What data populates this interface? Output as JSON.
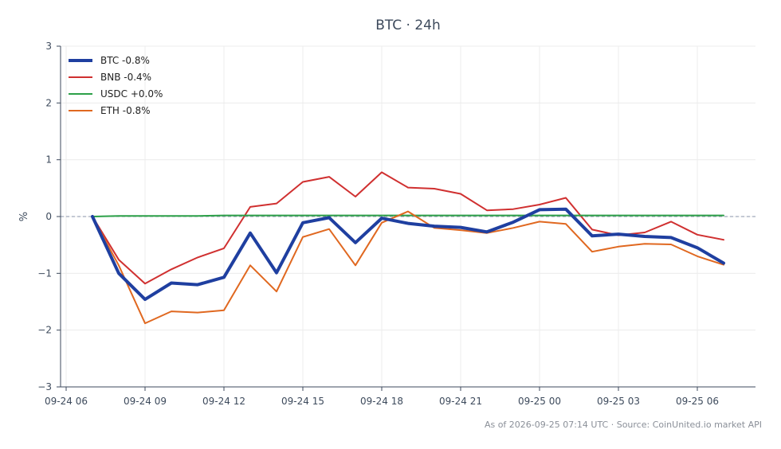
{
  "chart_data": {
    "type": "line",
    "title": "BTC · 24h",
    "ylabel": "%",
    "xlabel": "",
    "ylim": [
      -3,
      3
    ],
    "yticks": [
      -3,
      -2,
      -1,
      0,
      1,
      2,
      3
    ],
    "ytick_labels": [
      "−3",
      "−2",
      "−1",
      "0",
      "1",
      "2",
      "3"
    ],
    "xtick_labels": [
      "09-24 06",
      "09-24 09",
      "09-24 12",
      "09-24 15",
      "09-24 18",
      "09-24 21",
      "09-25 00",
      "09-25 03",
      "09-25 06"
    ],
    "x": [
      "09-24 07",
      "09-24 08",
      "09-24 09",
      "09-24 10",
      "09-24 11",
      "09-24 12",
      "09-24 13",
      "09-24 14",
      "09-24 15",
      "09-24 16",
      "09-24 17",
      "09-24 18",
      "09-24 19",
      "09-24 20",
      "09-24 21",
      "09-24 22",
      "09-24 23",
      "09-25 00",
      "09-25 01",
      "09-25 02",
      "09-25 03",
      "09-25 04",
      "09-25 05",
      "09-25 06",
      "09-25 07"
    ],
    "grid": true,
    "zero_line": true,
    "legend_position": "top-left",
    "series": [
      {
        "name": "BTC -0.8%",
        "color": "#1f3fa0",
        "width": "bold",
        "values": [
          0,
          -1.0,
          -1.46,
          -1.17,
          -1.2,
          -1.07,
          -0.29,
          -0.99,
          -0.11,
          -0.02,
          -0.46,
          -0.03,
          -0.12,
          -0.17,
          -0.19,
          -0.27,
          -0.1,
          0.12,
          0.13,
          -0.34,
          -0.31,
          -0.35,
          -0.37,
          -0.55,
          -0.82
        ]
      },
      {
        "name": "BNB -0.4%",
        "color": "#d03030",
        "width": "normal",
        "values": [
          0,
          -0.76,
          -1.18,
          -0.93,
          -0.72,
          -0.56,
          0.17,
          0.23,
          0.61,
          0.7,
          0.35,
          0.78,
          0.51,
          0.49,
          0.4,
          0.11,
          0.13,
          0.21,
          0.33,
          -0.23,
          -0.33,
          -0.28,
          -0.09,
          -0.32,
          -0.41
        ]
      },
      {
        "name": "USDC +0.0%",
        "color": "#2ca048",
        "width": "normal",
        "values": [
          0,
          0.01,
          0.01,
          0.01,
          0.01,
          0.02,
          0.02,
          0.02,
          0.02,
          0.02,
          0.02,
          0.02,
          0.02,
          0.02,
          0.02,
          0.02,
          0.02,
          0.02,
          0.02,
          0.02,
          0.02,
          0.02,
          0.02,
          0.02,
          0.02
        ]
      },
      {
        "name": "ETH -0.8%",
        "color": "#e06820",
        "width": "normal",
        "values": [
          0,
          -0.86,
          -1.88,
          -1.67,
          -1.69,
          -1.65,
          -0.86,
          -1.32,
          -0.36,
          -0.22,
          -0.86,
          -0.11,
          0.09,
          -0.2,
          -0.24,
          -0.29,
          -0.2,
          -0.09,
          -0.13,
          -0.62,
          -0.53,
          -0.48,
          -0.49,
          -0.7,
          -0.85
        ]
      }
    ]
  },
  "footer": "As of 2026-09-25 07:14 UTC · Source: CoinUnited.io market API"
}
